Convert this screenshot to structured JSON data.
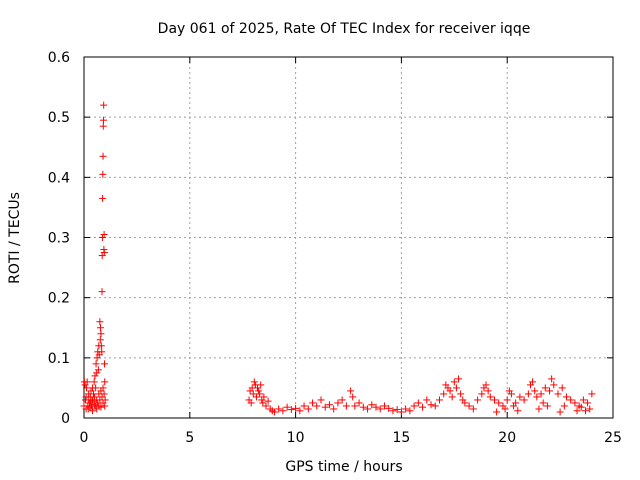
{
  "chart_data": {
    "type": "scatter",
    "title": "Day 061 of 2025, Rate Of TEC Index for receiver iqqe",
    "xlabel": "GPS time / hours",
    "ylabel": "ROTI / TECUs",
    "xlim": [
      0,
      25
    ],
    "ylim": [
      0,
      0.6
    ],
    "xticks": [
      0,
      5,
      10,
      15,
      20,
      25
    ],
    "yticks": [
      0,
      0.1,
      0.2,
      0.3,
      0.4,
      0.5,
      0.6
    ],
    "xtick_labels": [
      "0",
      "5",
      "10",
      "15",
      "20",
      "25"
    ],
    "ytick_labels": [
      "0",
      "0.1",
      "0.2",
      "0.3",
      "0.4",
      "0.5",
      "0.6"
    ],
    "grid": true,
    "marker": "+",
    "series": [
      {
        "name": "ROTI",
        "color": "#ff0000",
        "points": [
          [
            0.0,
            0.02
          ],
          [
            0.02,
            0.06
          ],
          [
            0.05,
            0.055
          ],
          [
            0.07,
            0.03
          ],
          [
            0.1,
            0.015
          ],
          [
            0.12,
            0.05
          ],
          [
            0.15,
            0.06
          ],
          [
            0.18,
            0.02
          ],
          [
            0.2,
            0.03
          ],
          [
            0.22,
            0.04
          ],
          [
            0.25,
            0.025
          ],
          [
            0.28,
            0.018
          ],
          [
            0.3,
            0.035
          ],
          [
            0.33,
            0.045
          ],
          [
            0.35,
            0.02
          ],
          [
            0.38,
            0.03
          ],
          [
            0.4,
            0.05
          ],
          [
            0.42,
            0.028
          ],
          [
            0.45,
            0.04
          ],
          [
            0.48,
            0.06
          ],
          [
            0.5,
            0.035
          ],
          [
            0.52,
            0.07
          ],
          [
            0.55,
            0.05
          ],
          [
            0.57,
            0.09
          ],
          [
            0.6,
            0.075
          ],
          [
            0.62,
            0.1
          ],
          [
            0.65,
            0.11
          ],
          [
            0.68,
            0.08
          ],
          [
            0.7,
            0.12
          ],
          [
            0.72,
            0.105
          ],
          [
            0.75,
            0.16
          ],
          [
            0.77,
            0.13
          ],
          [
            0.78,
            0.15
          ],
          [
            0.8,
            0.14
          ],
          [
            0.82,
            0.12
          ],
          [
            0.84,
            0.11
          ],
          [
            0.85,
            0.21
          ],
          [
            0.86,
            0.27
          ],
          [
            0.87,
            0.3
          ],
          [
            0.88,
            0.365
          ],
          [
            0.89,
            0.405
          ],
          [
            0.9,
            0.435
          ],
          [
            0.91,
            0.485
          ],
          [
            0.92,
            0.495
          ],
          [
            0.93,
            0.52
          ],
          [
            0.94,
            0.28
          ],
          [
            0.95,
            0.305
          ],
          [
            0.96,
            0.275
          ],
          [
            0.97,
            0.09
          ],
          [
            0.98,
            0.06
          ],
          [
            0.55,
            0.02
          ],
          [
            0.6,
            0.03
          ],
          [
            0.65,
            0.025
          ],
          [
            0.7,
            0.04
          ],
          [
            0.75,
            0.03
          ],
          [
            0.8,
            0.045
          ],
          [
            0.85,
            0.035
          ],
          [
            0.9,
            0.05
          ],
          [
            0.95,
            0.04
          ],
          [
            1.0,
            0.03
          ],
          [
            0.1,
            0.035
          ],
          [
            0.2,
            0.015
          ],
          [
            0.3,
            0.025
          ],
          [
            0.4,
            0.012
          ],
          [
            0.5,
            0.022
          ],
          [
            0.6,
            0.015
          ],
          [
            0.7,
            0.02
          ],
          [
            0.8,
            0.018
          ],
          [
            0.9,
            0.025
          ],
          [
            0.98,
            0.02
          ],
          [
            7.8,
            0.03
          ],
          [
            7.85,
            0.045
          ],
          [
            7.9,
            0.025
          ],
          [
            7.95,
            0.05
          ],
          [
            8.0,
            0.04
          ],
          [
            8.05,
            0.06
          ],
          [
            8.1,
            0.055
          ],
          [
            8.15,
            0.035
          ],
          [
            8.2,
            0.05
          ],
          [
            8.25,
            0.045
          ],
          [
            8.3,
            0.04
          ],
          [
            8.35,
            0.055
          ],
          [
            8.4,
            0.03
          ],
          [
            8.45,
            0.025
          ],
          [
            8.5,
            0.035
          ],
          [
            8.6,
            0.02
          ],
          [
            8.7,
            0.028
          ],
          [
            8.8,
            0.015
          ],
          [
            8.9,
            0.012
          ],
          [
            9.0,
            0.01
          ],
          [
            9.2,
            0.015
          ],
          [
            9.4,
            0.012
          ],
          [
            9.6,
            0.018
          ],
          [
            9.8,
            0.014
          ],
          [
            10.0,
            0.016
          ],
          [
            10.2,
            0.012
          ],
          [
            10.4,
            0.02
          ],
          [
            10.6,
            0.015
          ],
          [
            10.8,
            0.025
          ],
          [
            11.0,
            0.02
          ],
          [
            11.2,
            0.03
          ],
          [
            11.4,
            0.018
          ],
          [
            11.6,
            0.022
          ],
          [
            11.8,
            0.015
          ],
          [
            12.0,
            0.025
          ],
          [
            12.2,
            0.03
          ],
          [
            12.4,
            0.02
          ],
          [
            12.6,
            0.045
          ],
          [
            12.7,
            0.035
          ],
          [
            12.8,
            0.02
          ],
          [
            13.0,
            0.025
          ],
          [
            13.2,
            0.018
          ],
          [
            13.4,
            0.015
          ],
          [
            13.6,
            0.022
          ],
          [
            13.8,
            0.018
          ],
          [
            14.0,
            0.015
          ],
          [
            14.2,
            0.02
          ],
          [
            14.4,
            0.016
          ],
          [
            14.6,
            0.012
          ],
          [
            14.8,
            0.014
          ],
          [
            15.0,
            0.01
          ],
          [
            15.2,
            0.015
          ],
          [
            15.4,
            0.012
          ],
          [
            15.6,
            0.02
          ],
          [
            15.8,
            0.025
          ],
          [
            16.0,
            0.018
          ],
          [
            16.2,
            0.03
          ],
          [
            16.4,
            0.022
          ],
          [
            16.6,
            0.02
          ],
          [
            16.8,
            0.03
          ],
          [
            17.0,
            0.04
          ],
          [
            17.1,
            0.055
          ],
          [
            17.2,
            0.05
          ],
          [
            17.3,
            0.045
          ],
          [
            17.4,
            0.035
          ],
          [
            17.5,
            0.06
          ],
          [
            17.6,
            0.05
          ],
          [
            17.7,
            0.065
          ],
          [
            17.8,
            0.04
          ],
          [
            17.9,
            0.03
          ],
          [
            18.0,
            0.025
          ],
          [
            18.2,
            0.02
          ],
          [
            18.4,
            0.015
          ],
          [
            18.6,
            0.03
          ],
          [
            18.8,
            0.04
          ],
          [
            18.9,
            0.05
          ],
          [
            19.0,
            0.055
          ],
          [
            19.1,
            0.045
          ],
          [
            19.2,
            0.035
          ],
          [
            19.4,
            0.03
          ],
          [
            19.6,
            0.025
          ],
          [
            19.8,
            0.02
          ],
          [
            20.0,
            0.03
          ],
          [
            20.1,
            0.045
          ],
          [
            20.2,
            0.04
          ],
          [
            20.4,
            0.025
          ],
          [
            20.6,
            0.035
          ],
          [
            20.8,
            0.03
          ],
          [
            21.0,
            0.04
          ],
          [
            21.1,
            0.055
          ],
          [
            21.2,
            0.06
          ],
          [
            21.3,
            0.045
          ],
          [
            21.4,
            0.035
          ],
          [
            21.6,
            0.04
          ],
          [
            21.8,
            0.05
          ],
          [
            22.0,
            0.045
          ],
          [
            22.1,
            0.065
          ],
          [
            22.2,
            0.055
          ],
          [
            22.4,
            0.04
          ],
          [
            22.6,
            0.05
          ],
          [
            22.8,
            0.035
          ],
          [
            23.0,
            0.03
          ],
          [
            23.2,
            0.025
          ],
          [
            23.4,
            0.02
          ],
          [
            23.6,
            0.03
          ],
          [
            23.8,
            0.025
          ],
          [
            24.0,
            0.04
          ],
          [
            23.9,
            0.015
          ],
          [
            23.7,
            0.012
          ],
          [
            23.5,
            0.018
          ],
          [
            19.5,
            0.01
          ],
          [
            20.5,
            0.012
          ],
          [
            21.5,
            0.015
          ],
          [
            22.5,
            0.01
          ],
          [
            23.3,
            0.012
          ],
          [
            20.3,
            0.02
          ],
          [
            21.7,
            0.025
          ],
          [
            22.7,
            0.02
          ],
          [
            19.9,
            0.015
          ],
          [
            21.9,
            0.02
          ]
        ]
      }
    ]
  }
}
